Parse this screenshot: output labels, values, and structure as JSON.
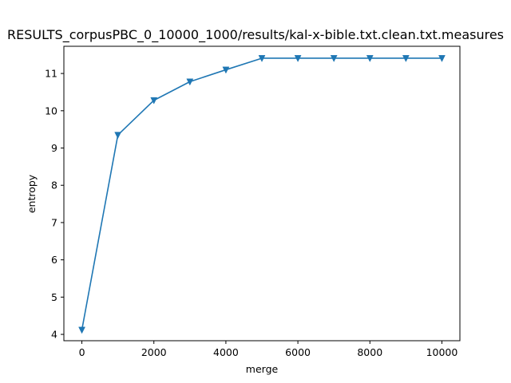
{
  "chart_data": {
    "type": "line",
    "title": "RESULTS_corpusPBC_0_10000_1000/results/kal-x-bible.txt.clean.txt.measures",
    "xlabel": "merge",
    "ylabel": "entropy",
    "xlim": [
      -500,
      10500
    ],
    "ylim": [
      3.83,
      11.73
    ],
    "xticks": [
      0,
      2000,
      4000,
      6000,
      8000,
      10000
    ],
    "yticks": [
      4,
      5,
      6,
      7,
      8,
      9,
      10,
      11
    ],
    "grid": false,
    "marker": "triangle-down",
    "color": "#1f77b4",
    "series": [
      {
        "x": [
          0,
          1000,
          2000,
          3000,
          4000,
          5000,
          6000,
          7000,
          8000,
          9000,
          10000
        ],
        "values": [
          4.12,
          9.35,
          10.28,
          10.78,
          11.1,
          11.41,
          11.41,
          11.41,
          11.41,
          11.41,
          11.41
        ]
      }
    ]
  }
}
